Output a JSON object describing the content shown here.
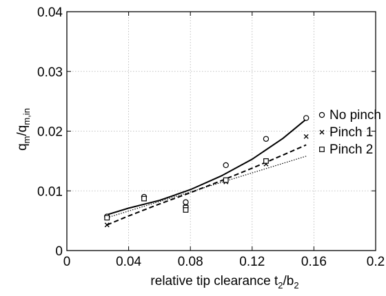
{
  "chart_data": {
    "type": "scatter",
    "xlabel": {
      "main": "relative tip clearance t",
      "sub1": "2",
      "sep": "/b",
      "sub2": "2"
    },
    "ylabel": {
      "p1": "q",
      "s1": "m",
      "p2": "/q",
      "s2": "m,in"
    },
    "xlim": [
      0,
      0.2
    ],
    "ylim": [
      0,
      0.04
    ],
    "xticks": [
      "0",
      "0.04",
      "0.08",
      "0.12",
      "0.16",
      "0.2"
    ],
    "xtick_values": [
      0,
      0.04,
      0.08,
      0.12,
      0.16,
      0.2
    ],
    "yticks": [
      "0",
      "0.01",
      "0.02",
      "0.03",
      "0.04"
    ],
    "ytick_values": [
      0,
      0.01,
      0.02,
      0.03,
      0.04
    ],
    "grid": true,
    "legend_position": "right",
    "series": [
      {
        "name": "No pinch",
        "marker": "circle",
        "line": "solid",
        "x": [
          0.026,
          0.05,
          0.077,
          0.077,
          0.103,
          0.129,
          0.155
        ],
        "y": [
          0.0057,
          0.009,
          0.0081,
          0.0073,
          0.0143,
          0.0187,
          0.0222
        ],
        "fit_x": [
          0.026,
          0.04,
          0.06,
          0.08,
          0.1,
          0.12,
          0.14,
          0.155
        ],
        "fit_y": [
          0.006,
          0.0071,
          0.0084,
          0.0102,
          0.0125,
          0.0153,
          0.0188,
          0.022
        ]
      },
      {
        "name": "Pinch 1",
        "marker": "x",
        "line": "dashed",
        "x": [
          0.026,
          0.05,
          0.077,
          0.077,
          0.103,
          0.129,
          0.155
        ],
        "y": [
          0.0043,
          0.0087,
          0.0072,
          0.0068,
          0.0115,
          0.0145,
          0.0191
        ],
        "fit_x": [
          0.026,
          0.04,
          0.06,
          0.08,
          0.1,
          0.12,
          0.14,
          0.155
        ],
        "fit_y": [
          0.0043,
          0.0058,
          0.0078,
          0.0097,
          0.0117,
          0.0138,
          0.016,
          0.0177
        ]
      },
      {
        "name": "Pinch 2",
        "marker": "square",
        "line": "dotted",
        "x": [
          0.026,
          0.05,
          0.077,
          0.077,
          0.103,
          0.129
        ],
        "y": [
          0.0055,
          0.0087,
          0.0072,
          0.0068,
          0.0118,
          0.015
        ],
        "fit_x": [
          0.026,
          0.155
        ],
        "fit_y": [
          0.0055,
          0.0158
        ]
      }
    ]
  }
}
